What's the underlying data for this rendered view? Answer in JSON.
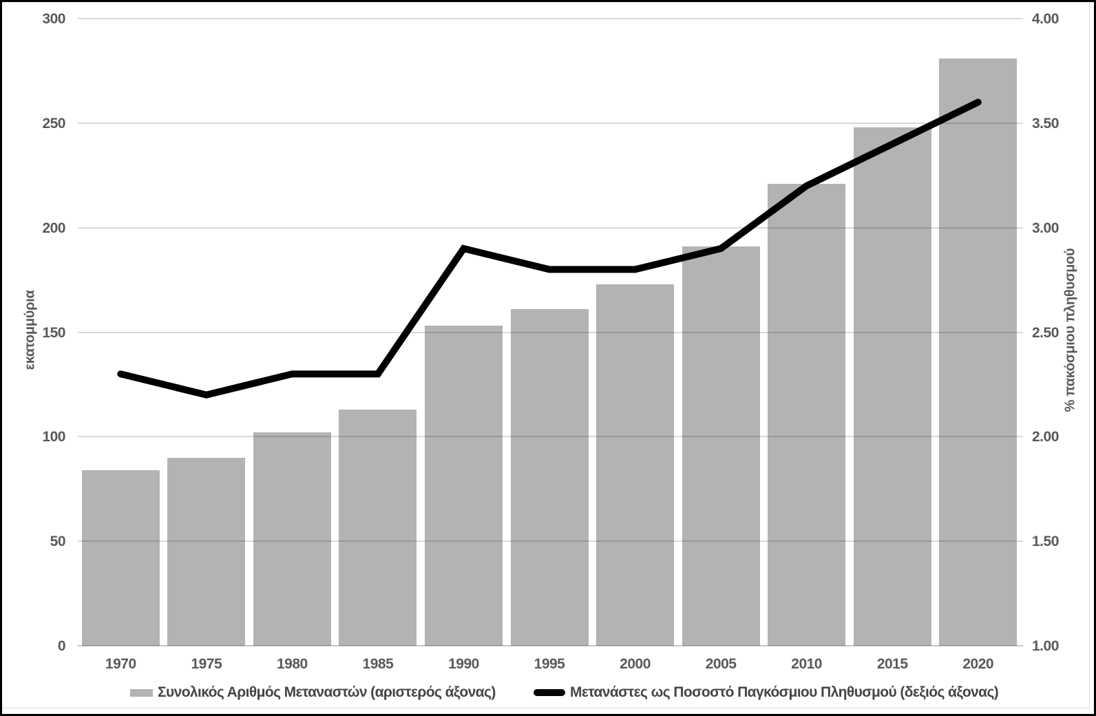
{
  "chart": {
    "left_axis": {
      "title": "εκατομμύρια",
      "tick_labels": [
        "0",
        "50",
        "100",
        "150",
        "200",
        "250",
        "300"
      ]
    },
    "right_axis": {
      "title": "% πακόσμιου πληθυσμού",
      "tick_labels": [
        "1.00",
        "1.50",
        "2.00",
        "2.50",
        "3.00",
        "3.50",
        "4.00"
      ]
    },
    "legend": {
      "bar_label": "Συνολικός Αριθμός Μεταναστών (αριστερός άξονας)",
      "line_label": "Μετανάστες ως Ποσοστό Παγκόσμιου Πληθυσμού (δεξιός άξονας)"
    },
    "colors": {
      "bar": "#b3b3b3",
      "line": "#000000",
      "gridline": "#d9d9d9",
      "tick_text": "#595959",
      "legend_text": "#454545"
    }
  },
  "chart_data": {
    "type": "combo",
    "categories": [
      "1970",
      "1975",
      "1980",
      "1985",
      "1990",
      "1995",
      "2000",
      "2005",
      "2010",
      "2015",
      "2020"
    ],
    "series": [
      {
        "name": "Συνολικός Αριθμός Μεταναστών (αριστερός άξονας)",
        "type": "bar",
        "axis": "left",
        "values": [
          84,
          90,
          102,
          113,
          153,
          161,
          173,
          191,
          221,
          248,
          281
        ]
      },
      {
        "name": "Μετανάστες ως Ποσοστό Παγκόσμιου Πληθυσμού (δεξιός άξονας)",
        "type": "line",
        "axis": "right",
        "values": [
          2.3,
          2.2,
          2.3,
          2.3,
          2.9,
          2.8,
          2.8,
          2.9,
          3.2,
          3.4,
          3.6
        ]
      }
    ],
    "left_ylabel": "εκατομμύρια",
    "right_ylabel": "% πακόσμιου πληθυσμού",
    "left_ylim": [
      0,
      300
    ],
    "right_ylim": [
      1.0,
      4.0
    ],
    "left_tick_step": 50,
    "right_tick_step": 0.5,
    "grid": true,
    "legend_position": "bottom"
  }
}
